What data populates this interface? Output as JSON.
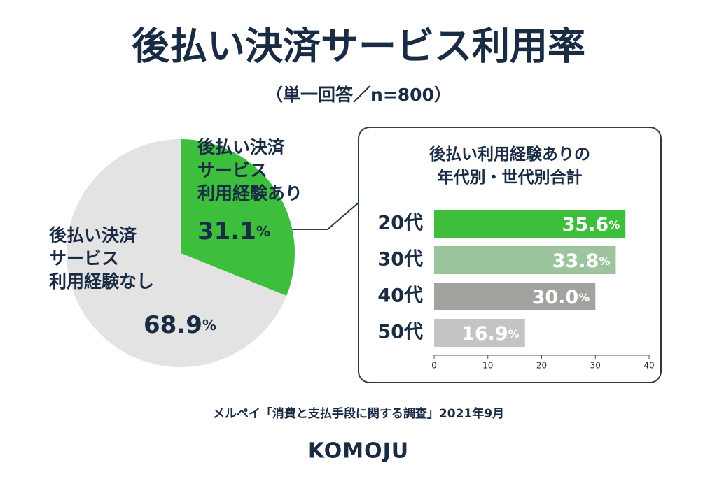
{
  "title": "後払い決済サービス利用率",
  "subtitle": "（単一回答／n=800）",
  "source": "メルペイ「消費と支払手段に関する調査」2021年9月",
  "logo": "KOMOJU",
  "chart_data": [
    {
      "type": "pie",
      "categories": [
        "後払い決済\nサービス\n利用経験あり",
        "後払い決済\nサービス\n利用経験なし"
      ],
      "values": [
        31.1,
        68.9
      ],
      "value_labels": [
        "31.1%",
        "68.9%"
      ],
      "colors": [
        "#3dbf3d",
        "#e3e3e3"
      ]
    },
    {
      "type": "hbar",
      "title": "後払い利用経験ありの\n年代別・世代別合計",
      "categories": [
        "20代",
        "30代",
        "40代",
        "50代"
      ],
      "values": [
        35.6,
        33.8,
        30.0,
        16.9
      ],
      "value_labels": [
        "35.6%",
        "33.8%",
        "30.0%",
        "16.9%"
      ],
      "colors": [
        "#3dbf3d",
        "#9dc59d",
        "#a2a29e",
        "#c4c4c4"
      ],
      "xlim": [
        0,
        40
      ],
      "xticks": [
        0,
        10,
        20,
        30,
        40
      ]
    }
  ]
}
